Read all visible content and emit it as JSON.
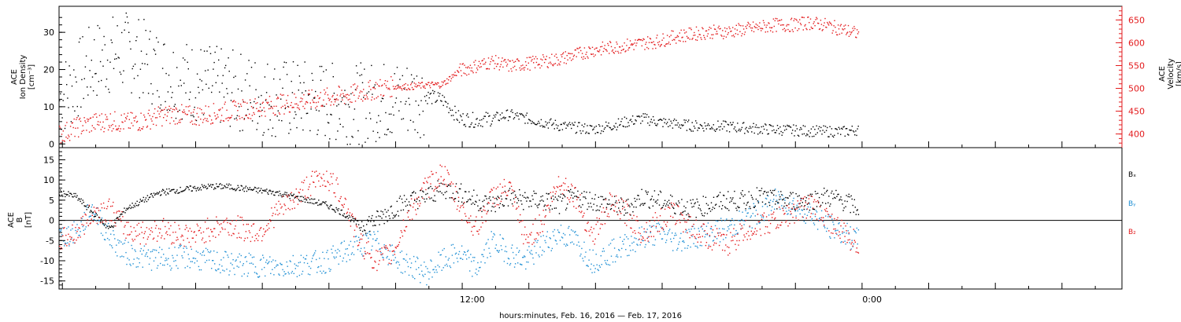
{
  "chart_data": [
    {
      "type": "scatter",
      "panel": "top",
      "ylabel_left_lines": [
        "ACE",
        "Ion Density",
        "[cm⁻³]"
      ],
      "ylabel_right_lines": [
        "ACE",
        "Velocity",
        "[km/s]"
      ],
      "ylim_left": [
        -1,
        37
      ],
      "ylim_right": [
        370,
        680
      ],
      "yticks_left": [
        0,
        10,
        20,
        30
      ],
      "yticks_right": [
        400,
        450,
        500,
        550,
        600,
        650
      ],
      "series": [
        {
          "axis": "left",
          "color": "#000000",
          "x": [
            0,
            0.5,
            1,
            1.5,
            2,
            2.5,
            3,
            3.5,
            4,
            4.5,
            5,
            5.5,
            6,
            6.5,
            7,
            7.5,
            8,
            8.5,
            9,
            9.5,
            10,
            10.5,
            11,
            11.5,
            12,
            12.5,
            13,
            13.5,
            14,
            14.5,
            15,
            15.5,
            16,
            16.5,
            17,
            17.5,
            18,
            18.5,
            19,
            19.5,
            20,
            20.5,
            21,
            21.5,
            22,
            22.5,
            23,
            23.5,
            24
          ],
          "values": [
            12,
            17,
            22,
            24,
            25,
            23,
            20,
            18,
            17,
            16,
            15,
            14,
            13,
            12.5,
            12,
            12,
            11.5,
            11,
            11,
            11.5,
            12,
            12.5,
            13,
            12,
            7,
            6.5,
            7,
            8,
            7,
            6,
            5,
            4.5,
            4,
            5,
            6,
            7,
            6,
            5.5,
            5,
            5,
            4.8,
            4.5,
            4.2,
            4,
            3.8,
            3.6,
            3.5,
            3.4,
            4
          ]
        },
        {
          "axis": "right",
          "color": "#e31a1c",
          "x": [
            0,
            0.5,
            1,
            1.5,
            2,
            2.5,
            3,
            3.5,
            4,
            4.5,
            5,
            5.5,
            6,
            6.5,
            7,
            7.5,
            8,
            8.5,
            9,
            9.5,
            10,
            10.5,
            11,
            11.5,
            12,
            12.5,
            13,
            13.5,
            14,
            14.5,
            15,
            15.5,
            16,
            16.5,
            17,
            17.5,
            18,
            18.5,
            19,
            19.5,
            20,
            20.5,
            21,
            21.5,
            22,
            22.5,
            23,
            23.5,
            24
          ],
          "values": [
            400,
            415,
            425,
            430,
            425,
            430,
            440,
            445,
            440,
            445,
            450,
            455,
            460,
            465,
            470,
            475,
            480,
            485,
            490,
            500,
            505,
            505,
            508,
            510,
            540,
            550,
            560,
            550,
            555,
            560,
            565,
            575,
            585,
            590,
            595,
            600,
            605,
            615,
            620,
            625,
            625,
            630,
            635,
            640,
            640,
            645,
            640,
            630,
            620
          ]
        }
      ]
    },
    {
      "type": "scatter",
      "panel": "bottom",
      "xlabel": "hours:minutes, Feb. 16, 2016 — Feb. 17, 2016",
      "xtick_labels": [
        "12:00",
        "0:00"
      ],
      "ylabel_lines": [
        "ACE",
        "B",
        "[nT]"
      ],
      "ylim": [
        -17,
        18
      ],
      "yticks": [
        -15,
        -10,
        -5,
        0,
        5,
        10,
        15
      ],
      "legend": [
        "Bₓ",
        "Bᵧ",
        "B₂"
      ],
      "legend_colors": [
        "#000000",
        "#1f8fd4",
        "#e31a1c"
      ],
      "legend_placement": "right",
      "series": [
        {
          "name": "Bx",
          "color": "#000000",
          "x": [
            0,
            0.5,
            1,
            1.5,
            2,
            2.5,
            3,
            3.5,
            4,
            4.5,
            5,
            5.5,
            6,
            6.5,
            7,
            7.5,
            8,
            8.5,
            9,
            9.5,
            10,
            10.5,
            11,
            11.5,
            12,
            12.5,
            13,
            13.5,
            14,
            14.5,
            15,
            15.5,
            16,
            16.5,
            17,
            17.5,
            18,
            18.5,
            19,
            19.5,
            20,
            20.5,
            21,
            21.5,
            22,
            22.5,
            23,
            23.5,
            24
          ],
          "values": [
            7,
            6,
            2,
            -2,
            3,
            5,
            7,
            7.5,
            8,
            8.5,
            8.5,
            8,
            7.5,
            7,
            6,
            5,
            4,
            2,
            -1,
            0,
            3,
            5,
            6,
            8,
            7,
            5,
            4,
            6,
            5,
            5,
            4,
            6,
            5,
            4,
            3,
            6,
            5,
            4,
            3,
            4,
            5,
            5,
            6,
            5,
            5,
            5,
            6,
            5,
            3
          ]
        },
        {
          "name": "By",
          "color": "#1f8fd4",
          "x": [
            0,
            0.5,
            1,
            1.5,
            2,
            2.5,
            3,
            3.5,
            4,
            4.5,
            5,
            5.5,
            6,
            6.5,
            7,
            7.5,
            8,
            8.5,
            9,
            9.5,
            10,
            10.5,
            11,
            11.5,
            12,
            12.5,
            13,
            13.5,
            14,
            14.5,
            15,
            15.5,
            16,
            16.5,
            17,
            17.5,
            18,
            18.5,
            19,
            19.5,
            20,
            20.5,
            21,
            21.5,
            22,
            22.5,
            23,
            23.5,
            24
          ],
          "values": [
            -4,
            -3,
            3,
            -4,
            -8,
            -9,
            -9.5,
            -9,
            -9,
            -10,
            -10.5,
            -11,
            -11,
            -11.5,
            -11,
            -10.5,
            -10,
            -8,
            -6,
            -5,
            -9,
            -11,
            -13,
            -10,
            -8,
            -12,
            -5,
            -8,
            -10,
            -6,
            -3,
            -5,
            -10,
            -8,
            -6,
            -4,
            -3,
            -5,
            -4,
            -3,
            -2,
            0,
            2,
            5,
            4,
            2,
            -1,
            -3,
            -5
          ]
        },
        {
          "name": "Bz",
          "color": "#e31a1c",
          "x": [
            0,
            0.5,
            1,
            1.5,
            2,
            2.5,
            3,
            3.5,
            4,
            4.5,
            5,
            5.5,
            6,
            6.5,
            7,
            7.5,
            8,
            8.5,
            9,
            9.5,
            10,
            10.5,
            11,
            11.5,
            12,
            12.5,
            13,
            13.5,
            14,
            14.5,
            15,
            15.5,
            16,
            16.5,
            17,
            17.5,
            18,
            18.5,
            19,
            19.5,
            20,
            20.5,
            21,
            21.5,
            22,
            22.5,
            23,
            23.5,
            24
          ],
          "values": [
            -5,
            -3,
            2,
            3,
            -2,
            -3,
            -2,
            -3,
            -4,
            -2,
            -1,
            -2,
            -3,
            2,
            5,
            9,
            11,
            6,
            -5,
            -10,
            -8,
            2,
            8,
            12,
            4,
            -2,
            6,
            8,
            -5,
            0,
            10,
            6,
            -4,
            4,
            2,
            -3,
            0,
            2,
            -2,
            -4,
            -6,
            -3,
            -1,
            0,
            2,
            4,
            1,
            -3,
            -6
          ]
        }
      ]
    }
  ]
}
